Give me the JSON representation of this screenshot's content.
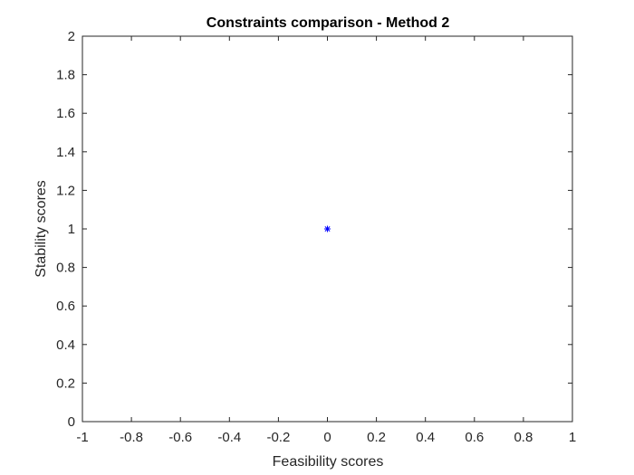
{
  "chart_data": {
    "type": "scatter",
    "title": "Constraints comparison - Method 2",
    "xlabel": "Feasibility scores",
    "ylabel": "Stability scores",
    "xlim": [
      -1,
      1
    ],
    "ylim": [
      0,
      2
    ],
    "xticks": [
      "-1",
      "-0.8",
      "-0.6",
      "-0.4",
      "-0.2",
      "0",
      "0.2",
      "0.4",
      "0.6",
      "0.8",
      "1"
    ],
    "yticks": [
      "0",
      "0.2",
      "0.4",
      "0.6",
      "0.8",
      "1",
      "1.2",
      "1.4",
      "1.6",
      "1.8",
      "2"
    ],
    "grid": false,
    "legend": "none",
    "series": [
      {
        "x": [
          0
        ],
        "y": [
          1
        ],
        "marker": "asterisk",
        "color": "#0000ff"
      }
    ]
  }
}
